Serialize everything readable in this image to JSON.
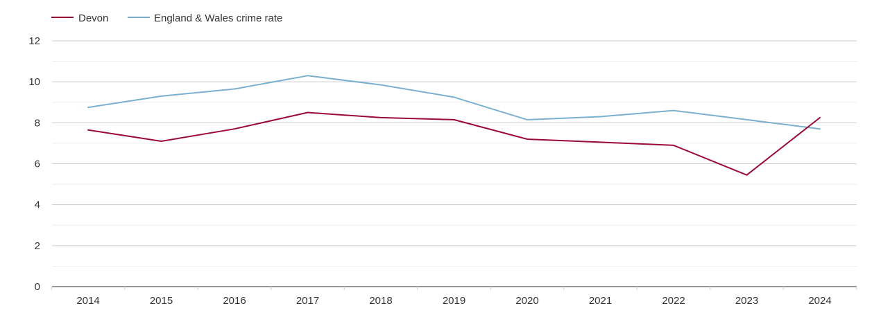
{
  "chart_data": {
    "type": "line",
    "title": "",
    "xlabel": "",
    "ylabel": "",
    "x": [
      "2014",
      "2015",
      "2016",
      "2017",
      "2018",
      "2019",
      "2020",
      "2021",
      "2022",
      "2023",
      "2024"
    ],
    "ylim": [
      0,
      12
    ],
    "yticks": [
      "0",
      "2",
      "4",
      "6",
      "8",
      "10",
      "12"
    ],
    "grid": true,
    "legend_position": "top-left",
    "series": [
      {
        "name": "Devon",
        "color": "#9b0a35",
        "values": [
          7.65,
          7.1,
          7.7,
          8.5,
          8.25,
          8.15,
          7.2,
          7.05,
          6.9,
          5.45,
          8.25
        ]
      },
      {
        "name": "England & Wales crime rate",
        "color": "#7ab0cf",
        "values": [
          8.75,
          9.3,
          9.65,
          10.3,
          9.85,
          9.25,
          8.15,
          8.3,
          8.6,
          8.15,
          7.7
        ]
      }
    ]
  }
}
